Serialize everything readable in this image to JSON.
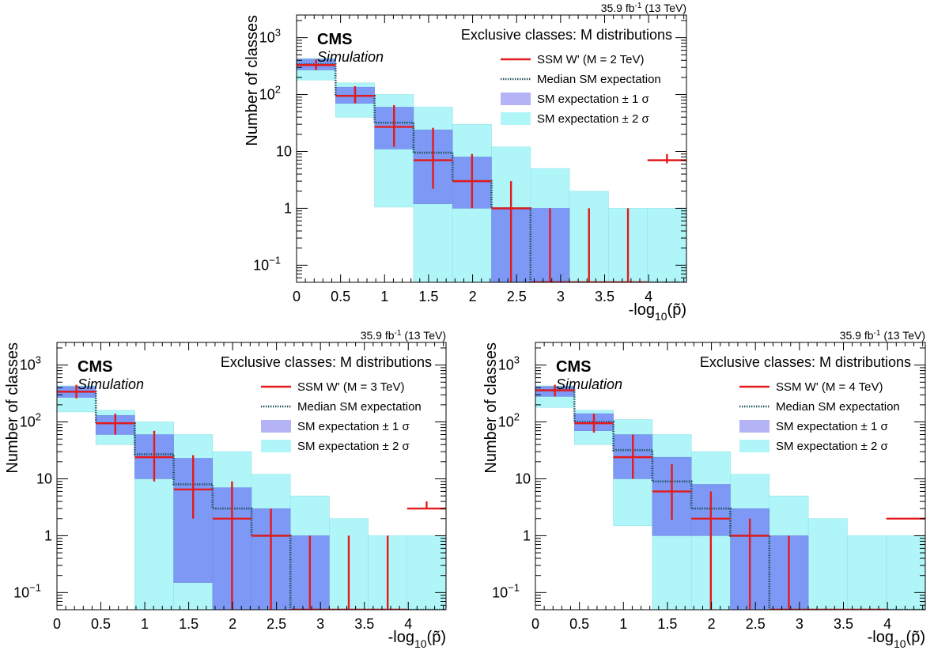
{
  "colors": {
    "red": "#e41a1c",
    "one_sigma": "#7d99f5",
    "one_sigma_legend": "#b3b3f5",
    "two_sigma": "#b0f6f9",
    "median": "#1d4f5a"
  },
  "chart_data": [
    {
      "type": "histogram",
      "panel": "top",
      "lumi_label": "35.9 fb",
      "lumi_sup": "-1",
      "lumi_energy": " (13 TeV)",
      "cms_label": "CMS",
      "sim_label": "Simulation",
      "header": "Exclusive classes: M distributions",
      "ylabel": "Number of classes",
      "xlabel_pre": "-log",
      "xlabel_sub": "10",
      "xlabel_post": "(p̃)",
      "xlim": [
        0,
        4.43
      ],
      "ylim": [
        0.05,
        2500
      ],
      "yscale": "log",
      "x_ticks": [
        "0",
        "0.5",
        "1",
        "1.5",
        "2",
        "2.5",
        "3",
        "3.5",
        "4"
      ],
      "y_ticks": [
        {
          "base": "10",
          "exp": "3",
          "value": 1000
        },
        {
          "base": "10",
          "exp": "2",
          "value": 100
        },
        {
          "base": "10",
          "exp": "",
          "value": 10
        },
        {
          "base": "1",
          "exp": "",
          "value": 1
        },
        {
          "base": "10",
          "exp": "−1",
          "value": 0.1
        }
      ],
      "legend": [
        {
          "kind": "line",
          "label": "SSM W' (M = 2 TeV)"
        },
        {
          "kind": "dotted",
          "label": "Median SM expectation"
        },
        {
          "kind": "box1",
          "label": "SM expectation ± 1 σ"
        },
        {
          "kind": "box2",
          "label": "SM expectation ± 2 σ"
        }
      ],
      "bin_edges": [
        0,
        0.443,
        0.886,
        1.329,
        1.772,
        2.215,
        2.658,
        3.101,
        3.544,
        3.987,
        4.43
      ],
      "median": [
        340,
        95,
        32,
        9.5,
        3,
        1,
        0.05,
        0.05,
        0.05,
        0.05
      ],
      "band1_low": [
        270,
        70,
        11,
        1.2,
        1,
        0.05,
        0.05,
        0.05,
        0.05,
        0.05
      ],
      "band1_high": [
        420,
        135,
        60,
        24,
        8,
        1,
        1,
        0.05,
        0.05,
        0.05
      ],
      "band2_low": [
        180,
        40,
        1.05,
        0.05,
        0.05,
        0.05,
        0.05,
        0.05,
        0.05,
        0.05
      ],
      "band2_high": [
        430,
        160,
        100,
        60,
        30,
        12,
        5,
        2,
        1,
        1
      ],
      "signal_values": [
        330,
        95,
        27,
        7,
        3,
        1,
        0.05,
        0.05,
        0.05,
        7
      ],
      "signal_err_low": [
        270,
        70,
        12,
        2.2,
        1,
        0.05,
        0.05,
        0.05,
        0.05,
        6.2
      ],
      "signal_err_high": [
        410,
        140,
        65,
        26,
        9,
        3,
        1,
        1,
        1,
        9
      ],
      "show_signal_vbar": [
        true,
        true,
        true,
        true,
        true,
        true,
        true,
        true,
        true,
        true
      ]
    },
    {
      "type": "histogram",
      "panel": "bottom-left",
      "lumi_label": "35.9 fb",
      "lumi_sup": "-1",
      "lumi_energy": " (13 TeV)",
      "cms_label": "CMS",
      "sim_label": "Simulation",
      "header": "Exclusive classes: M distributions",
      "ylabel": "Number of classes",
      "xlabel_pre": "-log",
      "xlabel_sub": "10",
      "xlabel_post": "(p̃)",
      "xlim": [
        0,
        4.43
      ],
      "ylim": [
        0.05,
        2500
      ],
      "yscale": "log",
      "x_ticks": [
        "0",
        "0.5",
        "1",
        "1.5",
        "2",
        "2.5",
        "3",
        "3.5",
        "4"
      ],
      "y_ticks": [
        {
          "base": "10",
          "exp": "3",
          "value": 1000
        },
        {
          "base": "10",
          "exp": "2",
          "value": 100
        },
        {
          "base": "10",
          "exp": "",
          "value": 10
        },
        {
          "base": "1",
          "exp": "",
          "value": 1
        },
        {
          "base": "10",
          "exp": "−1",
          "value": 0.1
        }
      ],
      "legend": [
        {
          "kind": "line",
          "label": "SSM W' (M = 3 TeV)"
        },
        {
          "kind": "dotted",
          "label": "Median SM expectation"
        },
        {
          "kind": "box1",
          "label": "SM expectation ± 1 σ"
        },
        {
          "kind": "box2",
          "label": "SM expectation ± 2 σ"
        }
      ],
      "bin_edges": [
        0,
        0.443,
        0.886,
        1.329,
        1.772,
        2.215,
        2.658,
        3.101,
        3.544,
        3.987,
        4.43
      ],
      "median": [
        340,
        95,
        27,
        8,
        3,
        1,
        0.05,
        0.05,
        0.05,
        0.05
      ],
      "band1_low": [
        270,
        60,
        10,
        0.15,
        0.05,
        0.05,
        0.05,
        0.05,
        0.05,
        0.05
      ],
      "band1_high": [
        420,
        130,
        60,
        23,
        7,
        3,
        1,
        0.05,
        0.05,
        0.05
      ],
      "band2_low": [
        150,
        40,
        0.05,
        0.05,
        0.05,
        0.05,
        0.05,
        0.05,
        0.05,
        0.05
      ],
      "band2_high": [
        430,
        160,
        100,
        60,
        30,
        12,
        5,
        2,
        1,
        1
      ],
      "signal_values": [
        340,
        95,
        24,
        6.5,
        2,
        1,
        0.05,
        0.05,
        0.05,
        3
      ],
      "signal_err_low": [
        260,
        60,
        9,
        2,
        0.05,
        0.05,
        0.05,
        0.05,
        0.05,
        3
      ],
      "signal_err_high": [
        450,
        140,
        70,
        26,
        9,
        3,
        1,
        1,
        1,
        4
      ],
      "show_signal_vbar": [
        true,
        true,
        true,
        true,
        true,
        true,
        true,
        true,
        true,
        true
      ]
    },
    {
      "type": "histogram",
      "panel": "bottom-right",
      "lumi_label": "35.9 fb",
      "lumi_sup": "-1",
      "lumi_energy": " (13 TeV)",
      "cms_label": "CMS",
      "sim_label": "Simulation",
      "header": "Exclusive classes: M distributions",
      "ylabel": "Number of classes",
      "xlabel_pre": "-log",
      "xlabel_sub": "10",
      "xlabel_post": "(p̃)",
      "xlim": [
        0,
        4.43
      ],
      "ylim": [
        0.05,
        2500
      ],
      "yscale": "log",
      "x_ticks": [
        "0",
        "0.5",
        "1",
        "1.5",
        "2",
        "2.5",
        "3",
        "3.5",
        "4"
      ],
      "y_ticks": [
        {
          "base": "10",
          "exp": "3",
          "value": 1000
        },
        {
          "base": "10",
          "exp": "2",
          "value": 100
        },
        {
          "base": "10",
          "exp": "",
          "value": 10
        },
        {
          "base": "1",
          "exp": "",
          "value": 1
        },
        {
          "base": "10",
          "exp": "−1",
          "value": 0.1
        }
      ],
      "legend": [
        {
          "kind": "line",
          "label": "SSM W' (M = 4 TeV)"
        },
        {
          "kind": "dotted",
          "label": "Median SM expectation"
        },
        {
          "kind": "box1",
          "label": "SM expectation ± 1 σ"
        },
        {
          "kind": "box2",
          "label": "SM expectation ± 2 σ"
        }
      ],
      "bin_edges": [
        0,
        0.443,
        0.886,
        1.329,
        1.772,
        2.215,
        2.658,
        3.101,
        3.544,
        3.987,
        4.43
      ],
      "median": [
        360,
        100,
        32,
        9,
        3,
        1,
        0.05,
        0.05,
        0.05,
        0.05
      ],
      "band1_low": [
        280,
        70,
        10,
        1,
        1,
        0.05,
        0.05,
        0.05,
        0.05,
        0.05
      ],
      "band1_high": [
        420,
        140,
        60,
        24,
        8,
        3,
        1,
        0.05,
        0.05,
        0.05
      ],
      "band2_low": [
        180,
        40,
        1.5,
        0.05,
        0.05,
        0.05,
        0.05,
        0.05,
        0.05,
        0.05
      ],
      "band2_high": [
        430,
        160,
        110,
        60,
        30,
        12,
        5,
        2,
        1,
        1
      ],
      "signal_values": [
        360,
        95,
        24,
        6,
        2,
        1,
        0.05,
        0.05,
        0.05,
        2
      ],
      "signal_err_low": [
        280,
        65,
        10,
        1.9,
        0.05,
        0.05,
        0.05,
        0.05,
        0.05,
        2
      ],
      "signal_err_high": [
        450,
        140,
        60,
        18,
        6,
        2,
        1,
        0.05,
        0.05,
        2
      ],
      "show_signal_vbar": [
        true,
        true,
        true,
        true,
        true,
        true,
        true,
        false,
        false,
        false
      ]
    }
  ]
}
